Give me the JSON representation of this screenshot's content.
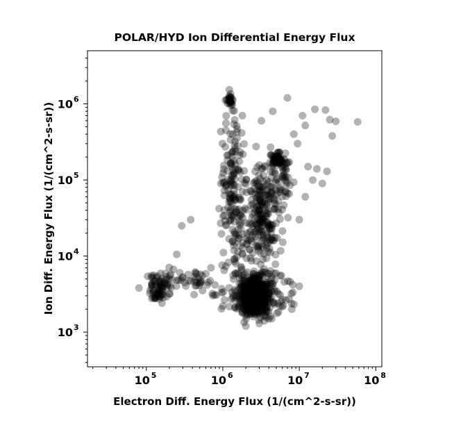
{
  "chart_data": {
    "type": "scatter",
    "title": "POLAR/HYD  Ion Differential Energy Flux",
    "xlabel": "Electron Diff. Energy Flux (1/(cm^2-s-sr))",
    "ylabel": "Ion Diff. Energy Flux (1/(cm^2-s-sr))",
    "xscale": "log",
    "yscale": "log",
    "xlim": [
      17000,
      120000000
    ],
    "ylim": [
      350,
      5000000
    ],
    "grid": false,
    "xticks": [
      {
        "base": "10",
        "exp": "5"
      },
      {
        "base": "10",
        "exp": "6"
      },
      {
        "base": "10",
        "exp": "7"
      },
      {
        "base": "10",
        "exp": "8"
      }
    ],
    "yticks": [
      {
        "base": "10",
        "exp": "3"
      },
      {
        "base": "10",
        "exp": "4"
      },
      {
        "base": "10",
        "exp": "5"
      },
      {
        "base": "10",
        "exp": "6"
      }
    ],
    "marker_color": "#000000",
    "marker_alpha": 0.3,
    "clusters": [
      {
        "x_center": 2600000,
        "y_center": 2800,
        "x_spread_dex": 0.1,
        "y_spread_dex": 0.12,
        "count": 420
      },
      {
        "x_center": 3000000,
        "y_center": 3500,
        "x_spread_dex": 0.2,
        "y_spread_dex": 0.18,
        "count": 160
      },
      {
        "x_center": 150000,
        "y_center": 3800,
        "x_spread_dex": 0.08,
        "y_spread_dex": 0.1,
        "count": 70
      },
      {
        "x_center": 400000,
        "y_center": 4800,
        "x_spread_dex": 0.28,
        "y_spread_dex": 0.12,
        "count": 60
      },
      {
        "x_center": 1200000,
        "y_center": 1100000,
        "x_spread_dex": 0.04,
        "y_spread_dex": 0.05,
        "count": 26
      },
      {
        "x_center": 1400000,
        "y_center": 100000,
        "x_spread_dex": 0.08,
        "y_spread_dex": 0.38,
        "count": 130
      },
      {
        "x_center": 3300000,
        "y_center": 40000,
        "x_spread_dex": 0.12,
        "y_spread_dex": 0.3,
        "count": 200
      },
      {
        "x_center": 5000000,
        "y_center": 190000,
        "x_spread_dex": 0.05,
        "y_spread_dex": 0.05,
        "count": 50
      },
      {
        "x_center": 6000000,
        "y_center": 110000,
        "x_spread_dex": 0.08,
        "y_spread_dex": 0.2,
        "count": 50
      },
      {
        "x_center": 2000000,
        "y_center": 15000,
        "x_spread_dex": 0.18,
        "y_spread_dex": 0.28,
        "count": 80
      }
    ],
    "points": [
      [
        80000,
        3800
      ],
      [
        160000,
        2400
      ],
      [
        250000,
        10500
      ],
      [
        290000,
        25000
      ],
      [
        380000,
        30000
      ],
      [
        1100000,
        450000
      ],
      [
        1400000,
        540000
      ],
      [
        1800000,
        700000
      ],
      [
        3200000,
        600000
      ],
      [
        4500000,
        800000
      ],
      [
        7000000,
        1200000
      ],
      [
        11000000,
        700000
      ],
      [
        12000000,
        520000
      ],
      [
        16000000,
        850000
      ],
      [
        22000000,
        830000
      ],
      [
        25000000,
        620000
      ],
      [
        27000000,
        380000
      ],
      [
        30000000,
        590000
      ],
      [
        58000000,
        580000
      ],
      [
        8500000,
        400000
      ],
      [
        9500000,
        300000
      ],
      [
        13000000,
        150000
      ],
      [
        15000000,
        100000
      ],
      [
        17000000,
        140000
      ],
      [
        20000000,
        90000
      ],
      [
        23000000,
        130000
      ],
      [
        12000000,
        60000
      ],
      [
        10000000,
        30000
      ],
      [
        10000000,
        4000
      ],
      [
        2000000,
        1200
      ],
      [
        3000000,
        1300
      ],
      [
        4000000,
        1500
      ],
      [
        8000000,
        2000
      ],
      [
        1000000,
        2200
      ],
      [
        700000,
        7000
      ]
    ]
  }
}
